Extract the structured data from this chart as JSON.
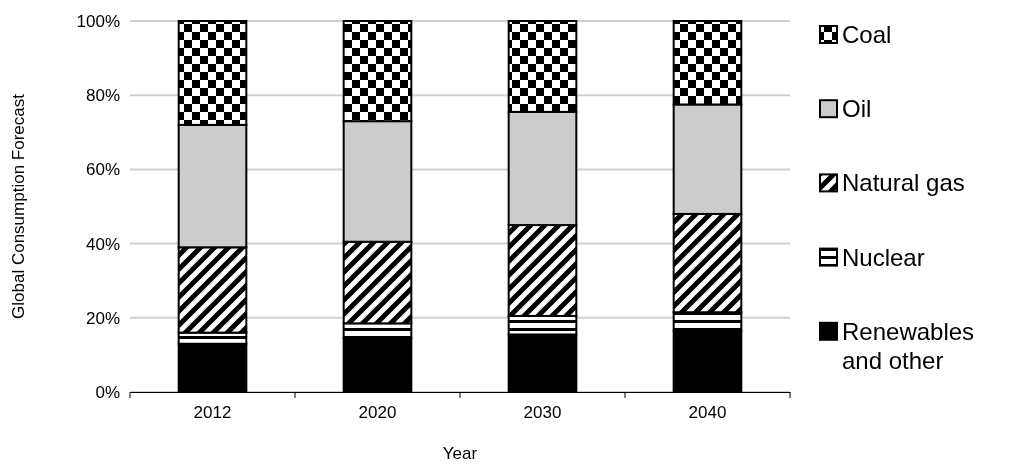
{
  "chart_data": {
    "type": "bar",
    "stacked": true,
    "xlabel": "Year",
    "ylabel": "Global Consumption Forecast",
    "categories": [
      "2012",
      "2020",
      "2030",
      "2040"
    ],
    "series": [
      {
        "name": "Renewables and other",
        "color": "#000000",
        "values": [
          13,
          14.5,
          15.5,
          16.5
        ]
      },
      {
        "name": "Nuclear",
        "color": "#000000",
        "values": [
          3,
          4,
          5,
          5
        ]
      },
      {
        "name": "Natural gas",
        "color": "#000000",
        "values": [
          23,
          22,
          24.5,
          26.5
        ]
      },
      {
        "name": "Oil",
        "color": "#cccccc",
        "values": [
          33,
          32.5,
          30.5,
          29.5
        ]
      },
      {
        "name": "Coal",
        "color": "#000000",
        "values": [
          28,
          27,
          24.5,
          22.5
        ]
      }
    ],
    "ylim": [
      0,
      100
    ],
    "yticks": [
      {
        "value": 0,
        "label": "0%"
      },
      {
        "value": 20,
        "label": "20%"
      },
      {
        "value": 40,
        "label": "40%"
      },
      {
        "value": 60,
        "label": "60%"
      },
      {
        "value": 80,
        "label": "80%"
      },
      {
        "value": 100,
        "label": "100%"
      }
    ],
    "grid": "y",
    "legend": "right"
  }
}
